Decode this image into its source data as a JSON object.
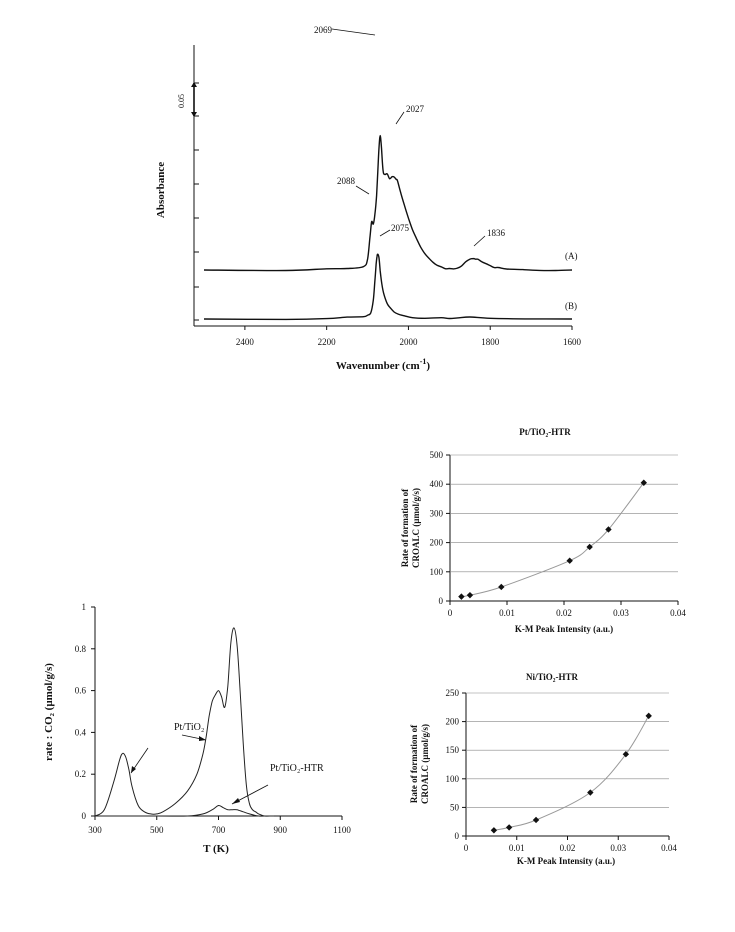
{
  "chart_data": [
    {
      "type": "line",
      "id": "ir",
      "xlabel": "Wavenumber (cm",
      "xlabel_sup": "-1",
      "xlabel_end": ")",
      "ylabel": "Absorbance",
      "x_ticks": [
        "2400",
        "2200",
        "2000",
        "1800",
        "1600"
      ],
      "xlim": [
        2500,
        1600
      ],
      "scale_bar_label": "0.05",
      "scale_bar": 0.05,
      "series": [
        {
          "name": "(A)",
          "x": [
            2500,
            2300,
            2200,
            2150,
            2110,
            2100,
            2094,
            2090,
            2086,
            2082,
            2078,
            2075,
            2072,
            2069,
            2066,
            2062,
            2058,
            2052,
            2046,
            2040,
            2035,
            2030,
            2027,
            2020,
            2010,
            2000,
            1990,
            1980,
            1970,
            1960,
            1950,
            1940,
            1930,
            1920,
            1910,
            1900,
            1890,
            1880,
            1870,
            1860,
            1850,
            1845,
            1840,
            1836,
            1830,
            1820,
            1810,
            1800,
            1790,
            1780,
            1760,
            1720,
            1680,
            1640,
            1600
          ],
          "y": [
            0.0,
            0.0,
            0.001,
            0.002,
            0.006,
            0.016,
            0.05,
            0.073,
            0.07,
            0.084,
            0.112,
            0.15,
            0.185,
            0.203,
            0.185,
            0.15,
            0.144,
            0.146,
            0.138,
            0.141,
            0.14,
            0.138,
            0.135,
            0.12,
            0.098,
            0.078,
            0.061,
            0.047,
            0.035,
            0.025,
            0.017,
            0.011,
            0.007,
            0.004,
            0.003,
            0.002,
            0.002,
            0.003,
            0.007,
            0.012,
            0.016,
            0.017,
            0.017,
            0.017,
            0.016,
            0.012,
            0.009,
            0.006,
            0.004,
            0.003,
            0.001,
            0.001,
            0.0,
            0.0,
            0.0
          ]
        },
        {
          "name": "(B)",
          "x": [
            2500,
            2300,
            2200,
            2150,
            2110,
            2100,
            2092,
            2086,
            2082,
            2079,
            2077,
            2075,
            2072,
            2069,
            2065,
            2060,
            2052,
            2045,
            2035,
            2025,
            2010,
            1990,
            1960,
            1920,
            1900,
            1880,
            1850,
            1800,
            1700,
            1600
          ],
          "y": [
            0.0,
            0.0,
            0.001,
            0.002,
            0.003,
            0.005,
            0.01,
            0.028,
            0.058,
            0.083,
            0.094,
            0.098,
            0.092,
            0.073,
            0.052,
            0.038,
            0.024,
            0.017,
            0.011,
            0.007,
            0.004,
            0.002,
            0.001,
            0.001,
            0.001,
            0.002,
            0.003,
            0.001,
            0.0,
            0.0
          ]
        }
      ],
      "annotations": [
        "2069",
        "2027",
        "2088",
        "2075",
        "1836"
      ]
    },
    {
      "type": "line",
      "id": "tpd",
      "xlabel": "T (K)",
      "ylabel": "rate : CO₂ (µmol/g/s)",
      "x_ticks": [
        "300",
        "500",
        "700",
        "900",
        "1100"
      ],
      "y_ticks": [
        "0",
        "0.2",
        "0.4",
        "0.6",
        "0.8",
        "1"
      ],
      "xlim": [
        300,
        1100
      ],
      "ylim": [
        0,
        1
      ],
      "series": [
        {
          "name": "Pt/TiO₂",
          "x": [
            300,
            330,
            360,
            380,
            390,
            400,
            410,
            420,
            440,
            460,
            480,
            500,
            520,
            560,
            600,
            630,
            650,
            660,
            670,
            680,
            690,
            700,
            710,
            720,
            730,
            740,
            750,
            760,
            770,
            780,
            790,
            800,
            810,
            820,
            830,
            850,
            870
          ],
          "y": [
            0.0,
            0.03,
            0.16,
            0.27,
            0.3,
            0.28,
            0.22,
            0.14,
            0.05,
            0.02,
            0.01,
            0.01,
            0.02,
            0.06,
            0.12,
            0.2,
            0.3,
            0.38,
            0.48,
            0.55,
            0.58,
            0.6,
            0.57,
            0.52,
            0.62,
            0.83,
            0.9,
            0.82,
            0.6,
            0.35,
            0.15,
            0.06,
            0.03,
            0.02,
            0.01,
            0.0,
            0.0
          ]
        },
        {
          "name": "Pt/TiO₂-HTR",
          "x": [
            300,
            500,
            600,
            650,
            680,
            700,
            715,
            730,
            745,
            760,
            780,
            800,
            830,
            860,
            880
          ],
          "y": [
            0.0,
            0.0,
            0.0,
            0.01,
            0.03,
            0.05,
            0.04,
            0.03,
            0.03,
            0.03,
            0.02,
            0.01,
            0.0,
            0.0,
            0.0
          ]
        }
      ],
      "annotations": [
        "Pt/TiO₂",
        "Pt/TiO₂-HTR"
      ]
    },
    {
      "type": "scatter",
      "id": "pt",
      "title": "Pt/TiO₂-HTR",
      "xlabel": "K-M Peak Intensity (a.u.)",
      "ylabel_line1": "Rate of formation of",
      "ylabel_line2": "CROALC (µmol/g/s)",
      "x_ticks": [
        "0",
        "0.01",
        "0.02",
        "0.03",
        "0.04"
      ],
      "y_ticks": [
        "0",
        "100",
        "200",
        "300",
        "400",
        "500"
      ],
      "xlim": [
        0,
        0.04
      ],
      "ylim": [
        0,
        500
      ],
      "x": [
        0.002,
        0.0035,
        0.009,
        0.021,
        0.0245,
        0.0278,
        0.034
      ],
      "y": [
        15,
        20,
        48,
        138,
        185,
        245,
        405
      ]
    },
    {
      "type": "scatter",
      "id": "ni",
      "title": "Ni/TiO₂-HTR",
      "xlabel": "K-M Peak Intensity (a.u.)",
      "ylabel_line1": "Rate of formation of",
      "ylabel_line2": "CROALC (µmol/g/s)",
      "x_ticks": [
        "0",
        "0.01",
        "0.02",
        "0.03",
        "0.04"
      ],
      "y_ticks": [
        "0",
        "50",
        "100",
        "150",
        "200",
        "250"
      ],
      "xlim": [
        0,
        0.04
      ],
      "ylim": [
        0,
        250
      ],
      "x": [
        0.0055,
        0.0085,
        0.0138,
        0.0245,
        0.0315,
        0.036
      ],
      "y": [
        10,
        15,
        28,
        76,
        143,
        210
      ]
    }
  ]
}
